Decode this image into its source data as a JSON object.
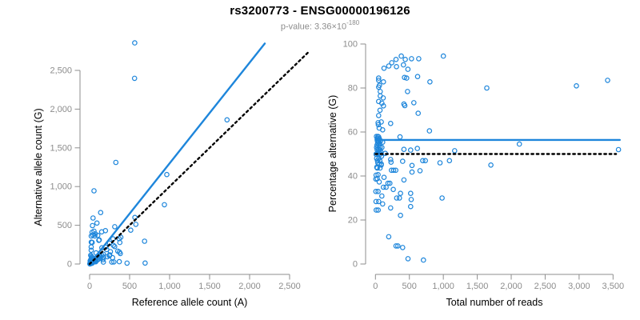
{
  "header": {
    "title": "rs3200773 - ENSG00000196126",
    "p_label": "p-value: ",
    "p_mantissa": "3.36×10",
    "p_exponent": "-180"
  },
  "colors": {
    "point": "#1e86db",
    "fit_line": "#1e86db",
    "reference_line": "#000000",
    "axis": "#8e8e8e",
    "tick_label": "#8c8c8c",
    "title": "#000000",
    "subtitle": "#8c8c8c",
    "background": "#ffffff"
  },
  "chart_data": [
    {
      "type": "scatter",
      "panel": "left",
      "xlabel": "Reference allele count (A)",
      "ylabel": "Alternative allele count (G)",
      "xlim": [
        0,
        2500
      ],
      "ylim": [
        0,
        2500
      ],
      "xticks": [
        0,
        500,
        1000,
        1500,
        2000,
        2500
      ],
      "xtick_labels": [
        "0",
        "500",
        "1,000",
        "1,500",
        "2,000",
        "2,500"
      ],
      "yticks": [
        0,
        500,
        1000,
        1500,
        2000,
        2500
      ],
      "ytick_labels": [
        "0",
        "500",
        "1,000",
        "1,500",
        "2,000",
        "2,500"
      ],
      "grid": false,
      "marker": "open-circle",
      "points_derivation": "x = total*(100-pct)/100, y = total*pct/100 from shared points_total_pct",
      "lines": [
        {
          "name": "fit",
          "style": "solid",
          "color": "#1e86db",
          "slope": 1.3,
          "intercept": 0,
          "x_range": [
            0,
            2190
          ]
        },
        {
          "name": "identity",
          "style": "dotted",
          "color": "#000000",
          "slope": 1,
          "intercept": 0,
          "x_range": [
            0,
            2730
          ]
        }
      ]
    },
    {
      "type": "scatter",
      "panel": "right",
      "xlabel": "Total number of reads",
      "ylabel": "Percentage alternative (G)",
      "xlim": [
        0,
        3500
      ],
      "ylim": [
        0,
        100
      ],
      "xticks": [
        0,
        500,
        1000,
        1500,
        2000,
        2500,
        3000,
        3500
      ],
      "xtick_labels": [
        "0",
        "500",
        "1,000",
        "1,500",
        "2,000",
        "2,500",
        "3,000",
        "3,500"
      ],
      "yticks": [
        0,
        20,
        40,
        60,
        80,
        100
      ],
      "ytick_labels": [
        "0",
        "20",
        "40",
        "60",
        "80",
        "100"
      ],
      "grid": false,
      "marker": "open-circle",
      "points_derivation": "x = total, y = pct from shared points_total_pct",
      "lines": [
        {
          "name": "mean-percentage",
          "style": "solid",
          "color": "#1e86db",
          "y": 56.4,
          "x_range": [
            0,
            3600
          ]
        },
        {
          "name": "null-50-percent",
          "style": "dotted",
          "color": "#000000",
          "y": 50,
          "x_range": [
            0,
            3545
          ]
        }
      ]
    }
  ],
  "points_total_pct": [
    [
      3420,
      83.5
    ],
    [
      2960,
      81
    ],
    [
      1640,
      80
    ],
    [
      3580,
      52
    ],
    [
      2120,
      54.5
    ],
    [
      1000,
      94.5
    ],
    [
      1700,
      45
    ],
    [
      1167,
      51.5
    ],
    [
      982,
      30
    ],
    [
      1090,
      47
    ],
    [
      951,
      46
    ],
    [
      795,
      60.5
    ],
    [
      381,
      94.5
    ],
    [
      303,
      93
    ],
    [
      240,
      91.5
    ],
    [
      197,
      90
    ],
    [
      126,
      89
    ],
    [
      440,
      93
    ],
    [
      531,
      93.3
    ],
    [
      637,
      93.3
    ],
    [
      310,
      89.7
    ],
    [
      413,
      90.5
    ],
    [
      479,
      88.5
    ],
    [
      47,
      84.5
    ],
    [
      47,
      83.5
    ],
    [
      118,
      82.8
    ],
    [
      59,
      81.2
    ],
    [
      47,
      80.4
    ],
    [
      428,
      84.8
    ],
    [
      460,
      84.5
    ],
    [
      621,
      85.2
    ],
    [
      802,
      82.8
    ],
    [
      71,
      78.4
    ],
    [
      114,
      75.5
    ],
    [
      71,
      76.4
    ],
    [
      472,
      78.4
    ],
    [
      47,
      73.9
    ],
    [
      94,
      73.1
    ],
    [
      118,
      71.9
    ],
    [
      420,
      72.7
    ],
    [
      432,
      72
    ],
    [
      566,
      73.3
    ],
    [
      67,
      69.9
    ],
    [
      47,
      67.5
    ],
    [
      629,
      68.5
    ],
    [
      39,
      64.2
    ],
    [
      42,
      63.3
    ],
    [
      86,
      64.6
    ],
    [
      224,
      63.9
    ],
    [
      55,
      61.8
    ],
    [
      106,
      61
    ],
    [
      47,
      57.8
    ],
    [
      362,
      57.8
    ],
    [
      106,
      55.4
    ],
    [
      420,
      52.1
    ],
    [
      519,
      51.8
    ],
    [
      617,
      52.5
    ],
    [
      10,
      49.9
    ],
    [
      145,
      50.3
    ],
    [
      224,
      47.5
    ],
    [
      230,
      46.3
    ],
    [
      401,
      46.7
    ],
    [
      55,
      45.5
    ],
    [
      86,
      45.5
    ],
    [
      27,
      43.6
    ],
    [
      67,
      43.6
    ],
    [
      236,
      42.6
    ],
    [
      267,
      42.6
    ],
    [
      299,
      42.6
    ],
    [
      538,
      44.8
    ],
    [
      696,
      47
    ],
    [
      735,
      47
    ],
    [
      538,
      41.8
    ],
    [
      656,
      42.4
    ],
    [
      39,
      40.6
    ],
    [
      10,
      40.4
    ],
    [
      27,
      38.8
    ],
    [
      6,
      38.6
    ],
    [
      126,
      39.4
    ],
    [
      55,
      37.3
    ],
    [
      185,
      36.7
    ],
    [
      212,
      36.7
    ],
    [
      420,
      38.2
    ],
    [
      118,
      34.9
    ],
    [
      157,
      34.9
    ],
    [
      263,
      33.9
    ],
    [
      6,
      33
    ],
    [
      39,
      33
    ],
    [
      369,
      32.1
    ],
    [
      519,
      32.1
    ],
    [
      94,
      30.9
    ],
    [
      314,
      30
    ],
    [
      353,
      30
    ],
    [
      527,
      29.3
    ],
    [
      8,
      28.4
    ],
    [
      47,
      28.4
    ],
    [
      106,
      27.3
    ],
    [
      224,
      25.5
    ],
    [
      12,
      24.5
    ],
    [
      40,
      24.5
    ],
    [
      369,
      22.1
    ],
    [
      519,
      26.1
    ],
    [
      196,
      12.4
    ],
    [
      303,
      8.2
    ],
    [
      330,
      8.2
    ],
    [
      401,
      7.5
    ],
    [
      480,
      2.4
    ],
    [
      707,
      1.8
    ],
    [
      12,
      50
    ],
    [
      25,
      52
    ],
    [
      18,
      48
    ],
    [
      30,
      47
    ],
    [
      45,
      52
    ],
    [
      60,
      55
    ],
    [
      70,
      53
    ],
    [
      50,
      48
    ],
    [
      65,
      47
    ],
    [
      80,
      51
    ],
    [
      90,
      49
    ],
    [
      35,
      46
    ],
    [
      55,
      51
    ],
    [
      75,
      56
    ],
    [
      85,
      45
    ],
    [
      95,
      53
    ],
    [
      40,
      50
    ],
    [
      20,
      44
    ],
    [
      15,
      58
    ],
    [
      28,
      56
    ],
    [
      22,
      54
    ],
    [
      33,
      55
    ],
    [
      16,
      53
    ],
    [
      44,
      56
    ],
    [
      58,
      57
    ],
    [
      36,
      58
    ],
    [
      26,
      57
    ],
    [
      48,
      54
    ],
    [
      62,
      52
    ],
    [
      74,
      50
    ]
  ]
}
